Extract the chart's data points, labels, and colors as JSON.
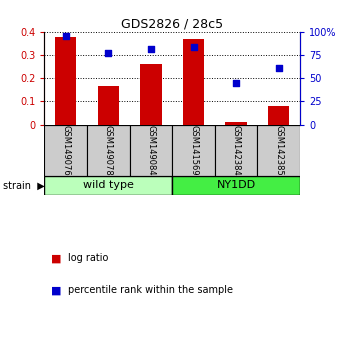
{
  "title": "GDS2826 / 28c5",
  "samples": [
    "GSM149076",
    "GSM149078",
    "GSM149084",
    "GSM141569",
    "GSM142384",
    "GSM142385"
  ],
  "log_ratio": [
    0.378,
    0.168,
    0.262,
    0.37,
    0.01,
    0.082
  ],
  "percentile_rank": [
    95,
    77,
    81,
    84,
    45,
    61
  ],
  "wt_color": "#bbffbb",
  "ny_color": "#44ee44",
  "bar_color": "#cc0000",
  "dot_color": "#0000cc",
  "label_box_color": "#cccccc",
  "ylim_left": [
    0,
    0.4
  ],
  "ylim_right": [
    0,
    100
  ],
  "yticks_left": [
    0,
    0.1,
    0.2,
    0.3,
    0.4
  ],
  "yticks_right": [
    0,
    25,
    50,
    75,
    100
  ],
  "ytick_labels_left": [
    "0",
    "0.1",
    "0.2",
    "0.3",
    "0.4"
  ],
  "ytick_labels_right": [
    "0",
    "25",
    "50",
    "75",
    "100%"
  ],
  "bar_width": 0.5,
  "background_color": "#ffffff",
  "legend_log_ratio": "log ratio",
  "legend_percentile": "percentile rank within the sample",
  "wt_label": "wild type",
  "ny_label": "NY1DD",
  "strain_label": "strain"
}
